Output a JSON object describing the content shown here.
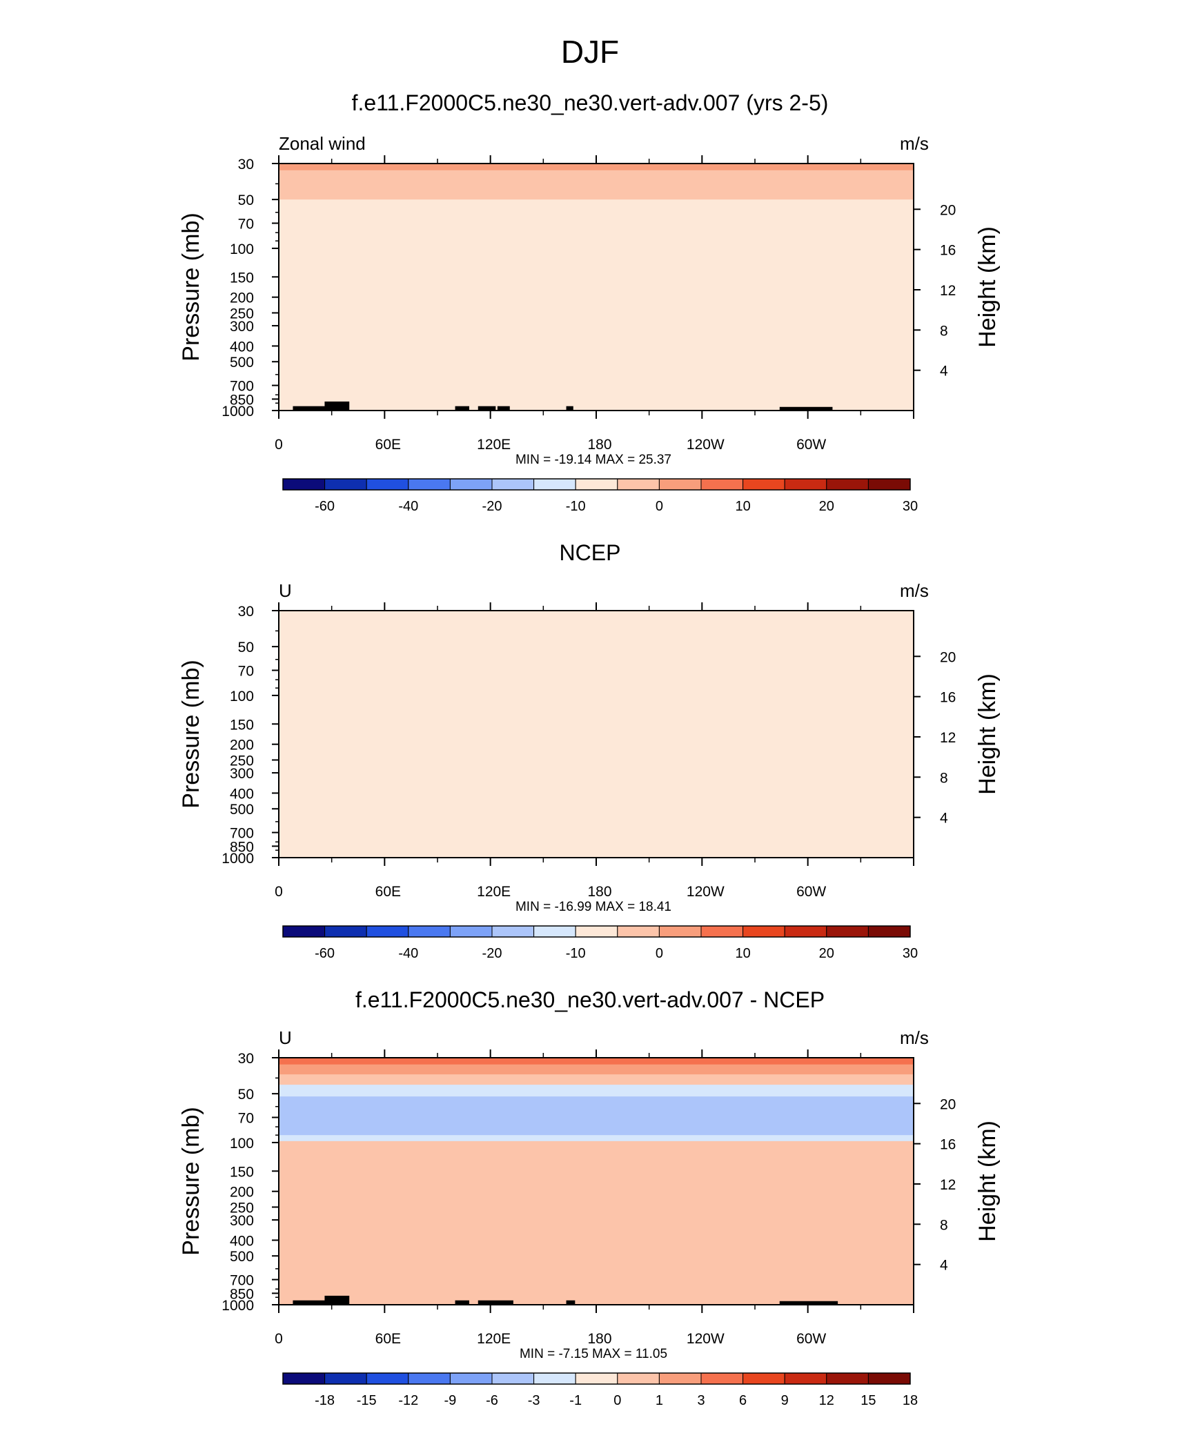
{
  "figure": {
    "title": "DJF"
  },
  "colorbar_fill_colors": [
    "#0b0b7a",
    "#0e2fb0",
    "#2050e0",
    "#4a78f0",
    "#7da2f7",
    "#acc5fa",
    "#d6e7fc",
    "#fde8d8",
    "#fcc4aa",
    "#f89e7c",
    "#f5714e",
    "#e8461f",
    "#c92a12",
    "#9a1509",
    "#7a0b05"
  ],
  "chart_data": [
    {
      "type": "heatmap",
      "title": "f.e11.F2000C5.ne30_ne30.vert-adv.007 (yrs 2-5)",
      "left_label": "Zonal wind",
      "right_label": "m/s",
      "ylabel": "Pressure (mb)",
      "y2label": "Height (km)",
      "x_tick_labels": [
        "0",
        "60E",
        "120E",
        "180",
        "120W",
        "60W"
      ],
      "y_tick_labels": [
        "30",
        "50",
        "70",
        "100",
        "150",
        "200",
        "250",
        "300",
        "400",
        "500",
        "700",
        "850",
        "1000"
      ],
      "y2_tick_labels": [
        "20",
        "16",
        "12",
        "8",
        "4"
      ],
      "stats": "MIN = -19.14  MAX =  25.37",
      "colorbar_labels": [
        "-60",
        "-40",
        "-20",
        "-10",
        "0",
        "10",
        "20",
        "30"
      ],
      "extrema": {
        "min": -19.14,
        "max": 25.37
      }
    },
    {
      "type": "heatmap",
      "title": "NCEP",
      "left_label": "U",
      "right_label": "m/s",
      "ylabel": "Pressure (mb)",
      "y2label": "Height (km)",
      "x_tick_labels": [
        "0",
        "60E",
        "120E",
        "180",
        "120W",
        "60W"
      ],
      "y_tick_labels": [
        "30",
        "50",
        "70",
        "100",
        "150",
        "200",
        "250",
        "300",
        "400",
        "500",
        "700",
        "850",
        "1000"
      ],
      "y2_tick_labels": [
        "20",
        "16",
        "12",
        "8",
        "4"
      ],
      "stats": "MIN = -16.99  MAX =  18.41",
      "colorbar_labels": [
        "-60",
        "-40",
        "-20",
        "-10",
        "0",
        "10",
        "20",
        "30"
      ],
      "extrema": {
        "min": -16.99,
        "max": 18.41
      }
    },
    {
      "type": "heatmap",
      "title": "f.e11.F2000C5.ne30_ne30.vert-adv.007 - NCEP",
      "left_label": "U",
      "right_label": "m/s",
      "ylabel": "Pressure (mb)",
      "y2label": "Height (km)",
      "x_tick_labels": [
        "0",
        "60E",
        "120E",
        "180",
        "120W",
        "60W"
      ],
      "y_tick_labels": [
        "30",
        "50",
        "70",
        "100",
        "150",
        "200",
        "250",
        "300",
        "400",
        "500",
        "700",
        "850",
        "1000"
      ],
      "y2_tick_labels": [
        "20",
        "16",
        "12",
        "8",
        "4"
      ],
      "stats": "MIN =  -7.15  MAX =  11.05",
      "colorbar_labels": [
        "-18",
        "-15",
        "-12",
        "-9",
        "-6",
        "-3",
        "-1",
        "0",
        "1",
        "3",
        "6",
        "9",
        "12",
        "15",
        "18"
      ],
      "extrema": {
        "min": -7.15,
        "max": 11.05
      }
    }
  ]
}
